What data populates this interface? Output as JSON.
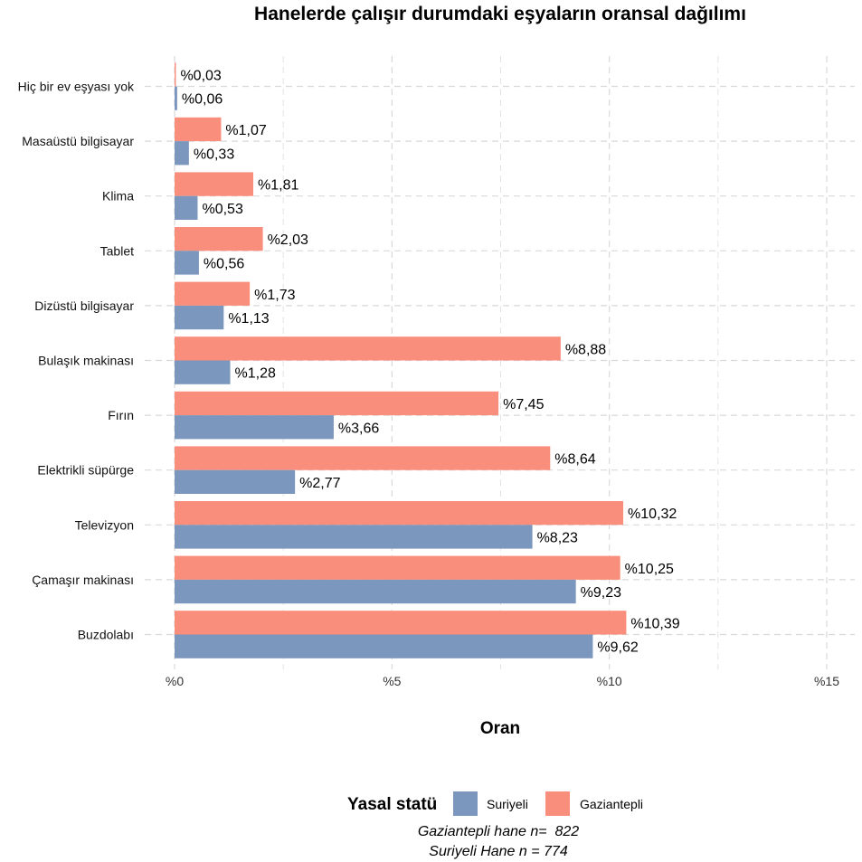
{
  "chart_data": {
    "type": "bar",
    "orientation": "horizontal",
    "title": "Hanelerde çalışır durumdaki eşyaların oransal dağılımı",
    "xlabel": "Oran",
    "xlim": [
      0,
      15
    ],
    "x_ticks": [
      0,
      5,
      10,
      15
    ],
    "x_tick_labels": [
      "%0",
      "%5",
      "%10",
      "%15"
    ],
    "grid": true,
    "categories": [
      "Hiç bir ev eşyası yok",
      "Masaüstü bilgisayar",
      "Klima",
      "Tablet",
      "Dizüstü bilgisayar",
      "Bulaşık makinası",
      "Fırın",
      "Elektrikli süpürge",
      "Televizyon",
      "Çamaşır makinası",
      "Buzdolabı"
    ],
    "series": [
      {
        "name": "Gaziantepli",
        "color": "#FA8E7C",
        "values": [
          0.03,
          1.07,
          1.81,
          2.03,
          1.73,
          8.88,
          7.45,
          8.64,
          10.32,
          10.25,
          10.39
        ],
        "labels": [
          "%0,03",
          "%1,07",
          "%1,81",
          "%2,03",
          "%1,73",
          "%8,88",
          "%7,45",
          "%8,64",
          "%10,32",
          "%10,25",
          "%10,39"
        ]
      },
      {
        "name": "Suriyeli",
        "color": "#7C97BD",
        "values": [
          0.06,
          0.33,
          0.53,
          0.56,
          1.13,
          1.28,
          3.66,
          2.77,
          8.23,
          9.23,
          9.62
        ],
        "labels": [
          "%0,06",
          "%0,33",
          "%0,53",
          "%0,56",
          "%1,13",
          "%1,28",
          "%3,66",
          "%2,77",
          "%8,23",
          "%9,23",
          "%9,62"
        ]
      }
    ],
    "legend": {
      "title": "Yasal statü",
      "position": "bottom",
      "items": [
        {
          "name": "Suriyeli",
          "color": "#7C97BD"
        },
        {
          "name": "Gaziantepli",
          "color": "#FA8E7C"
        }
      ]
    },
    "notes": [
      "Gaziantepli hane n=  822",
      "Suriyeli Hane n = 774"
    ]
  }
}
